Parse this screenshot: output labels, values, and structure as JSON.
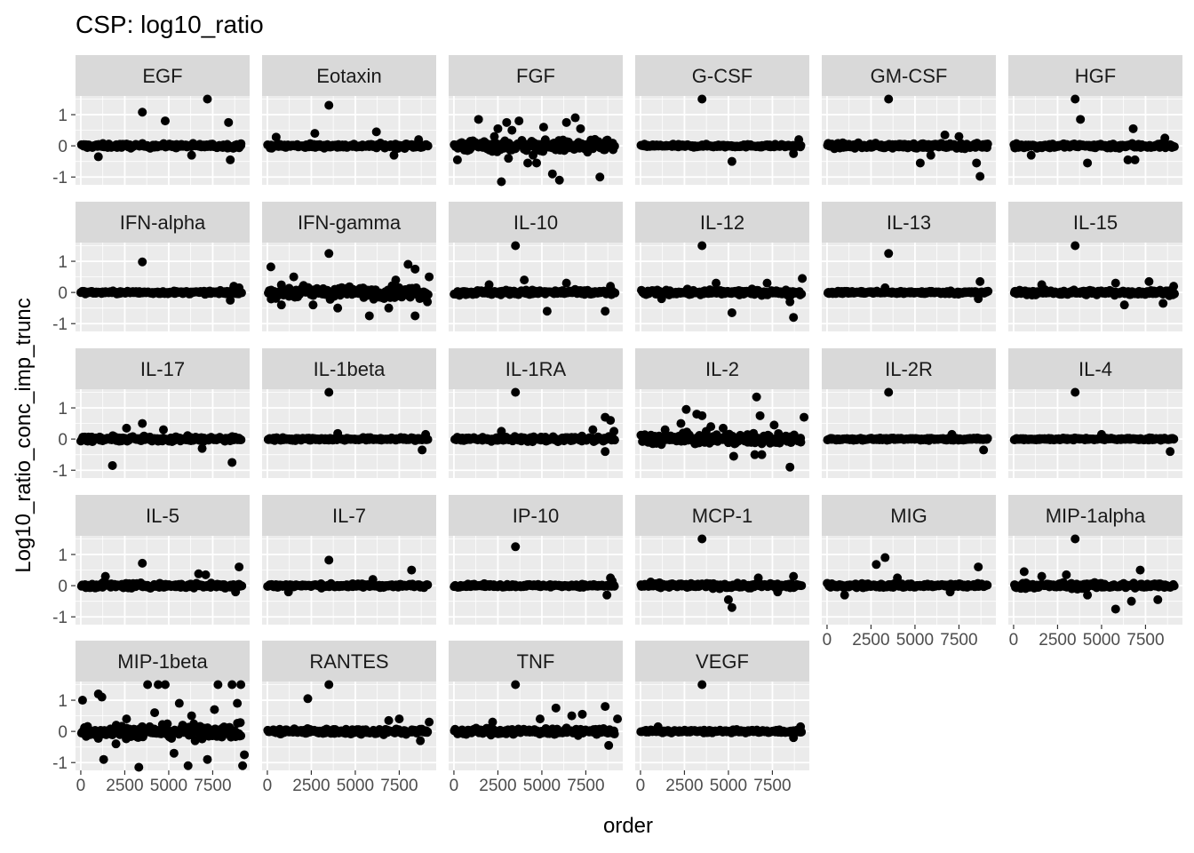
{
  "chart_data": {
    "type": "scatter",
    "title": "CSP: log10_ratio",
    "xlabel": "order",
    "ylabel": "Log10_ratio_conc_imp_trunc",
    "facet_layout": {
      "ncol": 6,
      "nrow": 5
    },
    "xlim": [
      -300,
      9600
    ],
    "ylim": [
      -1.25,
      1.6
    ],
    "x_ticks": [
      0,
      2500,
      5000,
      7500
    ],
    "x_tick_labels": [
      "0",
      "2500",
      "5000",
      "7500"
    ],
    "y_ticks": [
      -1,
      0,
      1
    ],
    "y_tick_labels": [
      "-1",
      "0",
      "1"
    ],
    "grid": true,
    "legend": "none",
    "colors": {
      "panel_bg": "#ebebeb",
      "strip_bg": "#d9d9d9",
      "grid": "#ffffff",
      "point": "#000000"
    },
    "facets": [
      {
        "name": "EGF",
        "spread": 0.06,
        "points": [
          [
            3500,
            1.08
          ],
          [
            4800,
            0.8
          ],
          [
            7200,
            1.5
          ],
          [
            8400,
            0.75
          ],
          [
            8500,
            -0.45
          ],
          [
            1000,
            -0.35
          ],
          [
            6300,
            -0.3
          ]
        ]
      },
      {
        "name": "Eotaxin",
        "spread": 0.06,
        "points": [
          [
            3500,
            1.3
          ],
          [
            2700,
            0.4
          ],
          [
            6200,
            0.45
          ],
          [
            7200,
            -0.3
          ],
          [
            500,
            0.28
          ],
          [
            8600,
            0.2
          ]
        ]
      },
      {
        "name": "FGF",
        "spread": 0.16,
        "points": [
          [
            200,
            -0.45
          ],
          [
            1400,
            0.85
          ],
          [
            2500,
            0.55
          ],
          [
            2700,
            -1.15
          ],
          [
            2300,
            0.3
          ],
          [
            3000,
            0.75
          ],
          [
            3300,
            0.5
          ],
          [
            3700,
            0.8
          ],
          [
            4200,
            -0.55
          ],
          [
            4500,
            -0.3
          ],
          [
            4700,
            -0.55
          ],
          [
            5100,
            0.6
          ],
          [
            5600,
            -0.9
          ],
          [
            6000,
            -1.1
          ],
          [
            6400,
            0.75
          ],
          [
            6900,
            0.9
          ],
          [
            7200,
            0.55
          ],
          [
            7600,
            -0.2
          ],
          [
            8300,
            -1.0
          ],
          [
            3100,
            -0.4
          ]
        ]
      },
      {
        "name": "G-CSF",
        "spread": 0.04,
        "points": [
          [
            3500,
            1.5
          ],
          [
            5200,
            -0.5
          ],
          [
            8700,
            -0.25
          ],
          [
            9000,
            0.2
          ]
        ]
      },
      {
        "name": "GM-CSF",
        "spread": 0.07,
        "points": [
          [
            3500,
            1.5
          ],
          [
            5300,
            -0.55
          ],
          [
            5900,
            -0.3
          ],
          [
            8500,
            -0.55
          ],
          [
            8700,
            -0.98
          ],
          [
            6700,
            0.35
          ],
          [
            7500,
            0.3
          ]
        ]
      },
      {
        "name": "HGF",
        "spread": 0.07,
        "points": [
          [
            3500,
            1.5
          ],
          [
            3800,
            0.85
          ],
          [
            4200,
            -0.55
          ],
          [
            6800,
            0.55
          ],
          [
            6500,
            -0.45
          ],
          [
            6900,
            -0.45
          ],
          [
            8600,
            0.25
          ],
          [
            1000,
            -0.3
          ]
        ]
      },
      {
        "name": "IFN-alpha",
        "spread": 0.04,
        "points": [
          [
            3500,
            0.98
          ],
          [
            8700,
            0.2
          ],
          [
            8500,
            -0.25
          ],
          [
            9000,
            0.15
          ]
        ]
      },
      {
        "name": "IFN-gamma",
        "spread": 0.16,
        "points": [
          [
            200,
            0.82
          ],
          [
            3500,
            1.25
          ],
          [
            8000,
            0.9
          ],
          [
            8400,
            0.75
          ],
          [
            800,
            -0.4
          ],
          [
            5800,
            -0.75
          ],
          [
            8400,
            -0.75
          ],
          [
            9200,
            0.5
          ],
          [
            1500,
            0.5
          ],
          [
            2600,
            -0.4
          ],
          [
            7300,
            0.4
          ],
          [
            4000,
            -0.5
          ],
          [
            6900,
            -0.5
          ],
          [
            9100,
            -0.3
          ]
        ]
      },
      {
        "name": "IL-10",
        "spread": 0.07,
        "points": [
          [
            3500,
            1.5
          ],
          [
            4000,
            0.4
          ],
          [
            5300,
            -0.6
          ],
          [
            8600,
            -0.6
          ],
          [
            6400,
            0.3
          ],
          [
            2000,
            0.25
          ],
          [
            8900,
            0.2
          ]
        ]
      },
      {
        "name": "IL-12",
        "spread": 0.07,
        "points": [
          [
            3500,
            1.5
          ],
          [
            4300,
            0.3
          ],
          [
            5200,
            -0.65
          ],
          [
            8500,
            -0.3
          ],
          [
            8700,
            -0.8
          ],
          [
            9200,
            0.45
          ],
          [
            7200,
            0.3
          ],
          [
            1200,
            -0.2
          ]
        ]
      },
      {
        "name": "IL-13",
        "spread": 0.04,
        "points": [
          [
            3500,
            1.25
          ],
          [
            8700,
            0.35
          ],
          [
            8600,
            -0.2
          ],
          [
            3300,
            0.15
          ]
        ]
      },
      {
        "name": "IL-15",
        "spread": 0.07,
        "points": [
          [
            3500,
            1.5
          ],
          [
            5800,
            0.3
          ],
          [
            6300,
            -0.4
          ],
          [
            7700,
            0.35
          ],
          [
            8500,
            -0.35
          ],
          [
            9100,
            0.2
          ],
          [
            1600,
            0.25
          ]
        ]
      },
      {
        "name": "IL-17",
        "spread": 0.07,
        "points": [
          [
            1800,
            -0.85
          ],
          [
            3500,
            0.5
          ],
          [
            8600,
            -0.75
          ],
          [
            2600,
            0.35
          ],
          [
            6900,
            -0.3
          ],
          [
            4700,
            0.3
          ]
        ]
      },
      {
        "name": "IL-1beta",
        "spread": 0.04,
        "points": [
          [
            3500,
            1.5
          ],
          [
            8800,
            -0.35
          ],
          [
            4000,
            0.18
          ],
          [
            9000,
            0.15
          ]
        ]
      },
      {
        "name": "IL-1RA",
        "spread": 0.07,
        "points": [
          [
            3500,
            1.5
          ],
          [
            8600,
            0.7
          ],
          [
            8900,
            0.6
          ],
          [
            8600,
            -0.4
          ],
          [
            7900,
            0.3
          ],
          [
            2700,
            0.25
          ],
          [
            9100,
            0.25
          ]
        ]
      },
      {
        "name": "IL-2",
        "spread": 0.15,
        "points": [
          [
            2600,
            0.95
          ],
          [
            3200,
            0.8
          ],
          [
            3500,
            0.75
          ],
          [
            6600,
            1.35
          ],
          [
            6800,
            0.75
          ],
          [
            2300,
            0.5
          ],
          [
            4000,
            0.4
          ],
          [
            5300,
            -0.55
          ],
          [
            6500,
            -0.5
          ],
          [
            6900,
            -0.5
          ],
          [
            8500,
            -0.9
          ],
          [
            9300,
            0.7
          ],
          [
            7600,
            0.45
          ],
          [
            1400,
            0.3
          ],
          [
            4700,
            0.35
          ]
        ]
      },
      {
        "name": "IL-2R",
        "spread": 0.03,
        "points": [
          [
            3500,
            1.5
          ],
          [
            8900,
            -0.35
          ],
          [
            7100,
            0.15
          ]
        ]
      },
      {
        "name": "IL-4",
        "spread": 0.03,
        "points": [
          [
            3500,
            1.5
          ],
          [
            8900,
            -0.4
          ],
          [
            5000,
            0.15
          ]
        ]
      },
      {
        "name": "IL-5",
        "spread": 0.07,
        "points": [
          [
            3500,
            0.72
          ],
          [
            9000,
            0.6
          ],
          [
            6700,
            0.38
          ],
          [
            7100,
            0.35
          ],
          [
            1400,
            0.3
          ],
          [
            8800,
            -0.2
          ]
        ]
      },
      {
        "name": "IL-7",
        "spread": 0.05,
        "points": [
          [
            3500,
            0.82
          ],
          [
            8200,
            0.5
          ],
          [
            6000,
            0.2
          ],
          [
            1200,
            -0.2
          ]
        ]
      },
      {
        "name": "IP-10",
        "spread": 0.04,
        "points": [
          [
            3500,
            1.25
          ],
          [
            8700,
            -0.3
          ],
          [
            8900,
            0.25
          ],
          [
            9000,
            0.15
          ]
        ]
      },
      {
        "name": "MCP-1",
        "spread": 0.07,
        "points": [
          [
            3500,
            1.5
          ],
          [
            5200,
            -0.7
          ],
          [
            5000,
            -0.45
          ],
          [
            8700,
            0.3
          ],
          [
            6700,
            0.25
          ],
          [
            7800,
            -0.2
          ]
        ]
      },
      {
        "name": "MIG",
        "spread": 0.06,
        "points": [
          [
            2800,
            0.68
          ],
          [
            3300,
            0.9
          ],
          [
            8600,
            0.6
          ],
          [
            4000,
            0.25
          ],
          [
            1000,
            -0.3
          ],
          [
            7000,
            -0.2
          ]
        ]
      },
      {
        "name": "MIP-1alpha",
        "spread": 0.08,
        "points": [
          [
            3500,
            1.5
          ],
          [
            600,
            0.45
          ],
          [
            1600,
            0.3
          ],
          [
            3000,
            0.35
          ],
          [
            5800,
            -0.75
          ],
          [
            6700,
            -0.5
          ],
          [
            7200,
            0.5
          ],
          [
            8200,
            -0.45
          ],
          [
            4200,
            -0.3
          ]
        ]
      },
      {
        "name": "MIP-1beta",
        "spread": 0.18,
        "points": [
          [
            100,
            1.0
          ],
          [
            1000,
            1.2
          ],
          [
            1300,
            -0.9
          ],
          [
            1200,
            1.1
          ],
          [
            2000,
            -0.4
          ],
          [
            3300,
            -1.15
          ],
          [
            3800,
            1.5
          ],
          [
            4400,
            1.5
          ],
          [
            4800,
            1.5
          ],
          [
            5300,
            -0.7
          ],
          [
            6100,
            -1.1
          ],
          [
            6300,
            0.5
          ],
          [
            7200,
            -0.9
          ],
          [
            7600,
            0.7
          ],
          [
            7800,
            1.5
          ],
          [
            8600,
            1.5
          ],
          [
            9100,
            1.5
          ],
          [
            9200,
            -1.1
          ],
          [
            9300,
            -0.75
          ],
          [
            5600,
            0.9
          ],
          [
            4200,
            0.6
          ],
          [
            8900,
            0.9
          ],
          [
            2600,
            0.4
          ],
          [
            6500,
            -0.3
          ]
        ]
      },
      {
        "name": "RANTES",
        "spread": 0.08,
        "points": [
          [
            2300,
            1.05
          ],
          [
            3500,
            1.5
          ],
          [
            6900,
            0.35
          ],
          [
            7500,
            0.4
          ],
          [
            8700,
            -0.3
          ],
          [
            9200,
            0.3
          ]
        ]
      },
      {
        "name": "TNF",
        "spread": 0.09,
        "points": [
          [
            3500,
            1.5
          ],
          [
            5800,
            0.75
          ],
          [
            6700,
            0.5
          ],
          [
            7300,
            0.55
          ],
          [
            8600,
            0.8
          ],
          [
            8800,
            -0.45
          ],
          [
            9300,
            0.4
          ],
          [
            4900,
            0.4
          ],
          [
            2200,
            0.3
          ]
        ]
      },
      {
        "name": "VEGF",
        "spread": 0.04,
        "points": [
          [
            3500,
            1.5
          ],
          [
            8700,
            -0.2
          ],
          [
            9100,
            0.15
          ],
          [
            1000,
            0.15
          ]
        ]
      }
    ]
  }
}
